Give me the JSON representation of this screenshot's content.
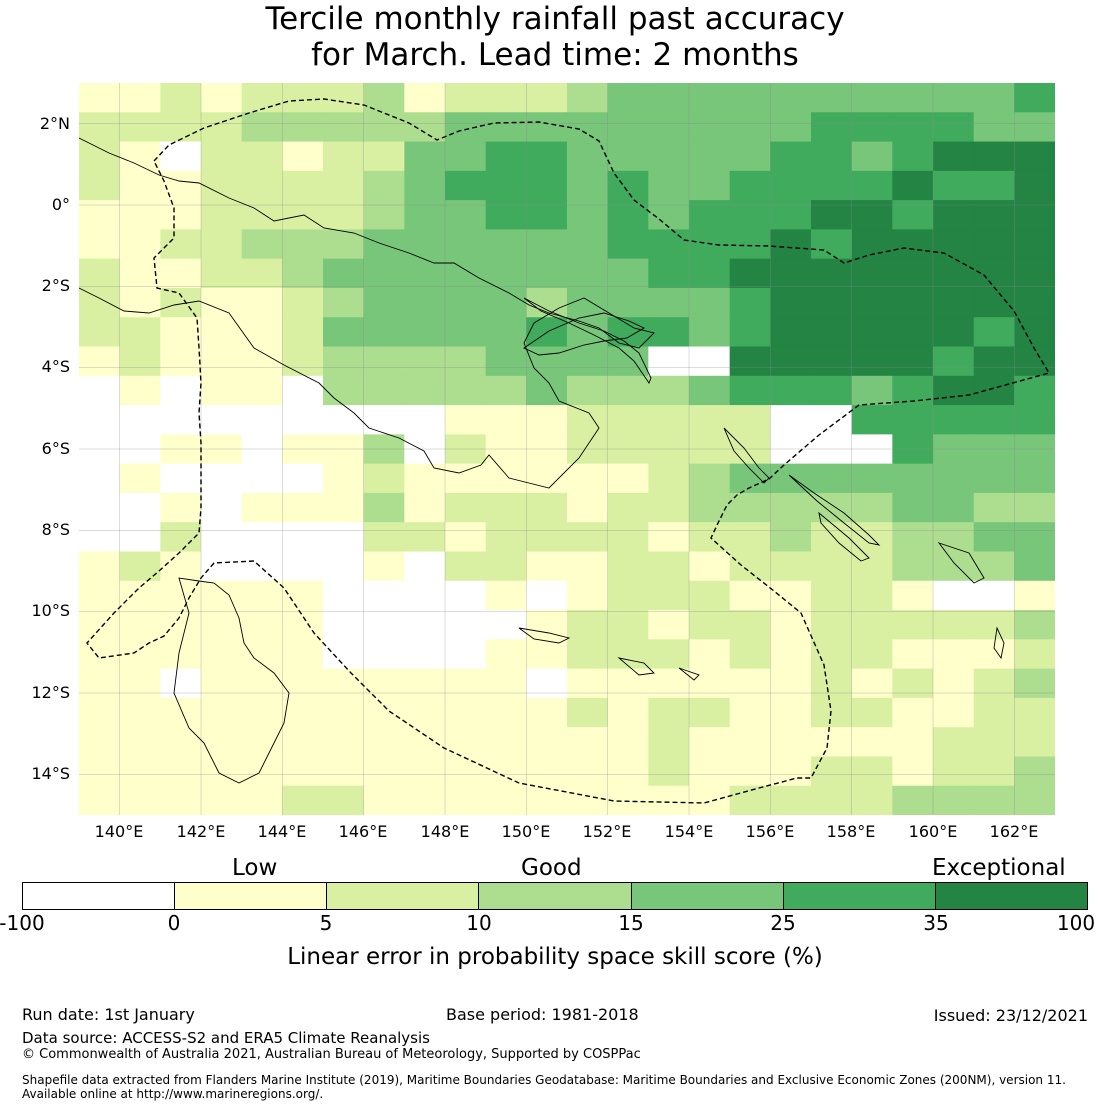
{
  "title": {
    "line1": "Tercile monthly rainfall past accuracy",
    "line2": "for March. Lead time: 2 months"
  },
  "axes": {
    "lat_labels": [
      "2°N",
      "0°",
      "2°S",
      "4°S",
      "6°S",
      "8°S",
      "10°S",
      "12°S",
      "14°S"
    ],
    "lon_labels": [
      "140°E",
      "142°E",
      "144°E",
      "146°E",
      "148°E",
      "150°E",
      "152°E",
      "154°E",
      "156°E",
      "158°E",
      "160°E",
      "162°E"
    ],
    "lat_range": [
      -15,
      3
    ],
    "lon_range": [
      139,
      163
    ]
  },
  "legend": {
    "categories": [
      "Low",
      "Good",
      "Exceptional"
    ],
    "ticks": [
      "-100",
      "0",
      "5",
      "10",
      "15",
      "25",
      "35",
      "100"
    ],
    "colors": [
      "#ffffff",
      "#ffffcc",
      "#d9f0a3",
      "#addd8e",
      "#78c679",
      "#41ab5d",
      "#238443"
    ],
    "label": "Linear error in probability space skill score (%)"
  },
  "footer": {
    "run_date": "Run date: 1st January",
    "base_period": "Base period: 1981-2018",
    "issued": "Issued: 23/12/2021",
    "data_source": "Data source: ACCESS-S2 and ERA5 Climate Reanalysis",
    "copyright": "© Commonwealth of Australia 2021, Australian Bureau of Meteorology, Supported by COSPPac",
    "shapefile_line1": "Shapefile data extracted from Flanders Marine Institute (2019), Maritime Boundaries Geodatabase: Maritime Boundaries and Exclusive Economic Zones (200NM), version 11.",
    "shapefile_line2": "Available online at http://www.marineregions.org/."
  },
  "map_data": {
    "grid_rows": [
      "112122231222344444444445",
      "222233333444444444555544",
      "210221224455444445545666",
      "211222234555454455556556",
      "111222234455454555665666",
      "112233344444455556566666",
      "211223444444445566666666",
      "212112344443444456666666",
      "221112444445455456666656",
      "121112333344440066666566",
      "010110333334333455545665",
      "000000000111222220055555",
      "001101130211222220005444",
      "010000121111112344444444",
      "001011131222122333334433",
      "002000022122221223223344",
      "121000010221122122223334",
      "111111000010122211221001",
      "111111000001221221222223",
      "111111000011222121221112",
      "110111111110111111212123",
      "111111111111212211221122",
      "111111111111112111111222",
      "111111111111112111221223",
      "111112211111111122223333"
    ]
  }
}
